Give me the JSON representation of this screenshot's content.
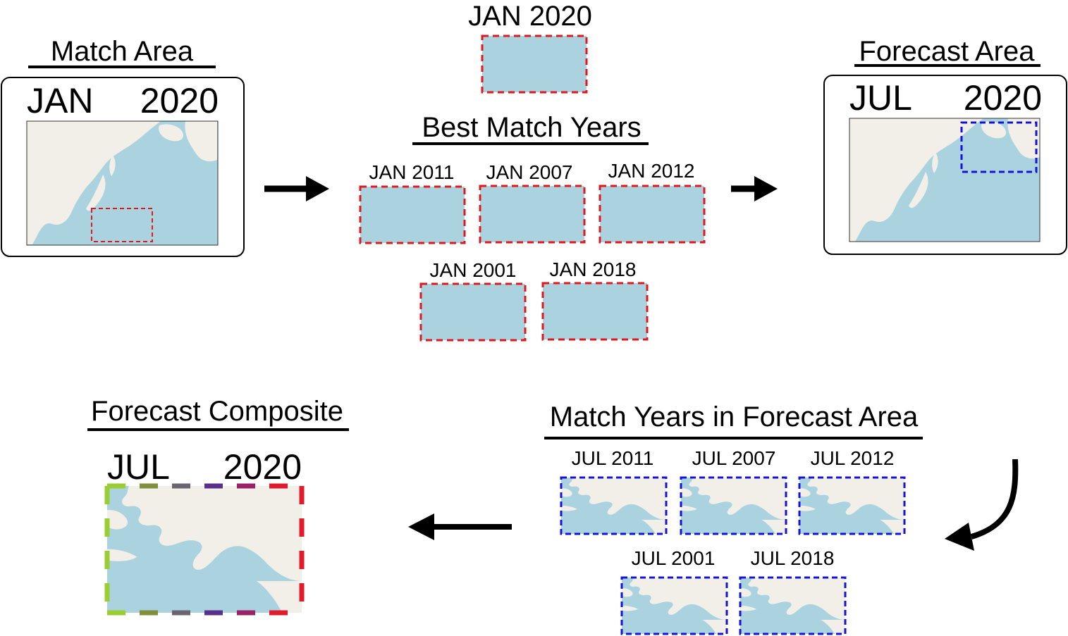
{
  "colors": {
    "ocean": "#aad3df",
    "land": "#f2efe9",
    "match_box": "#e0181e",
    "forecast_box": "#1414d8",
    "frame": "#000000"
  },
  "match_area": {
    "title": "Match Area",
    "month": "JAN",
    "year": "2020"
  },
  "target_patch": {
    "label": "JAN 2020"
  },
  "best_match": {
    "title": "Best Match Years",
    "items": [
      "JAN 2011",
      "JAN 2007",
      "JAN 2012",
      "JAN 2001",
      "JAN 2018"
    ]
  },
  "forecast_area": {
    "title": "Forecast Area",
    "month": "JUL",
    "year": "2020"
  },
  "match_years_forecast": {
    "title": "Match Years in Forecast Area",
    "items": [
      "JUL 2011",
      "JUL 2007",
      "JUL 2012",
      "JUL 2001",
      "JUL 2018"
    ]
  },
  "composite": {
    "title": "Forecast Composite",
    "month": "JUL",
    "year": "2020",
    "border_colors": [
      "#9acd32",
      "#7f8f3c",
      "#6a6470",
      "#5a2f8a",
      "#9a2266",
      "#e01b2b"
    ]
  },
  "icons": [
    "arrow-right-icon",
    "arrow-right-icon",
    "curved-arrow-icon",
    "arrow-left-icon"
  ]
}
